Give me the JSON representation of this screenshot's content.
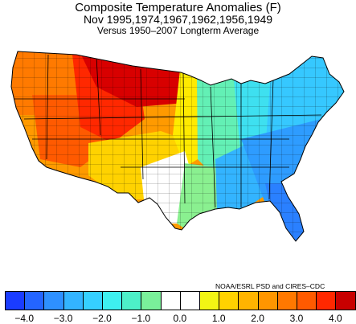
{
  "title": {
    "line1": "Composite Temperature Anomalies (F)",
    "line2": "Nov  1995,1974,1967,1962,1956,1949",
    "line3": "Versus 1950–2007 Longterm Average"
  },
  "credit": "NOAA/ESRL PSD and CIRES–CDC",
  "colorbar": {
    "colors": [
      "#1a3cff",
      "#2465ff",
      "#2e90ff",
      "#33b4ff",
      "#36d0ff",
      "#3ef0f0",
      "#4df0c8",
      "#7af09a",
      "#ffffff",
      "#ffffff",
      "#f2f514",
      "#ffd200",
      "#ffb400",
      "#ff9600",
      "#ff7800",
      "#ff5a00",
      "#ff2800",
      "#c80000"
    ],
    "tick_labels": [
      "−4.0",
      "−3.0",
      "−2.0",
      "−1.0",
      "0.0",
      "1.0",
      "2.0",
      "3.0",
      "4.0"
    ]
  },
  "map_regions": {
    "northern_plains": "#d80000",
    "northern_rockies": "#ff2800",
    "pacific_northwest": "#ff7a00",
    "great_basin": "#ff5a00",
    "california": "#ff9a00",
    "southwest": "#ffd200",
    "central_plains": "#ffea00",
    "plains_neutral": "#ffffff",
    "midwest": "#63f0b5",
    "great_lakes": "#3ee0f0",
    "northeast": "#36c8ff",
    "southeast": "#2e9cff",
    "florida": "#2a80ff",
    "gulf_coast": "#33b4ff",
    "texas": "#8af090"
  }
}
